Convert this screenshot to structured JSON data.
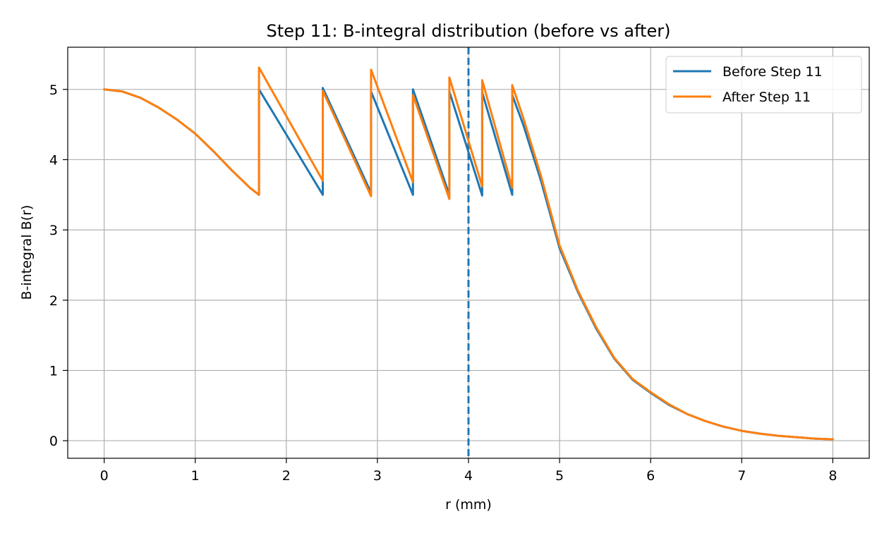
{
  "chart_data": {
    "type": "line",
    "title": "Step 11: B-integral distribution (before vs after)",
    "xlabel": "r (mm)",
    "ylabel": "B-integral B(r)",
    "xlim": [
      -0.4,
      8.4
    ],
    "ylim": [
      -0.25,
      5.6
    ],
    "xticks": [
      0,
      1,
      2,
      3,
      4,
      5,
      6,
      7,
      8
    ],
    "yticks": [
      0,
      1,
      2,
      3,
      4,
      5
    ],
    "grid": true,
    "legend_position": "top-right",
    "vline": {
      "x": 4.0,
      "style": "dashed",
      "color": "#1f77b4"
    },
    "colors": {
      "before": "#1f77b4",
      "after": "#ff7f0e",
      "grid": "#b0b0b0"
    },
    "series": [
      {
        "name": "Before Step 11",
        "color": "#1f77b4",
        "x": [
          0,
          0.2,
          0.4,
          0.6,
          0.8,
          1.0,
          1.2,
          1.4,
          1.6,
          1.7,
          1.7,
          2.4,
          2.4,
          2.93,
          2.93,
          3.39,
          3.39,
          3.79,
          3.79,
          4.15,
          4.15,
          4.48,
          4.48,
          4.6,
          4.8,
          5.0,
          5.2,
          5.4,
          5.6,
          5.8,
          6.0,
          6.2,
          6.4,
          6.6,
          6.8,
          7.0,
          7.2,
          7.4,
          7.6,
          7.8,
          8.0
        ],
        "y": [
          5.0,
          4.97,
          4.88,
          4.74,
          4.57,
          4.37,
          4.12,
          3.85,
          3.6,
          3.5,
          5.0,
          3.5,
          5.02,
          3.53,
          4.97,
          3.5,
          5.0,
          3.5,
          4.97,
          3.49,
          4.96,
          3.5,
          4.92,
          4.5,
          3.68,
          2.74,
          2.12,
          1.6,
          1.17,
          0.87,
          0.68,
          0.51,
          0.38,
          0.28,
          0.2,
          0.14,
          0.1,
          0.07,
          0.05,
          0.03,
          0.02
        ]
      },
      {
        "name": "After Step 11",
        "color": "#ff7f0e",
        "x": [
          0,
          0.2,
          0.4,
          0.6,
          0.8,
          1.0,
          1.2,
          1.4,
          1.6,
          1.7,
          1.7,
          2.4,
          2.4,
          2.93,
          2.93,
          3.39,
          3.39,
          3.79,
          3.79,
          4.15,
          4.15,
          4.48,
          4.48,
          4.6,
          4.8,
          5.0,
          5.2,
          5.4,
          5.6,
          5.8,
          6.0,
          6.2,
          6.4,
          6.6,
          6.8,
          7.0,
          7.2,
          7.4,
          7.6,
          7.8,
          8.0
        ],
        "y": [
          5.0,
          4.97,
          4.88,
          4.74,
          4.57,
          4.37,
          4.12,
          3.85,
          3.6,
          3.5,
          5.31,
          3.7,
          4.98,
          3.48,
          5.28,
          3.68,
          4.92,
          3.44,
          5.17,
          3.62,
          5.13,
          3.6,
          5.06,
          4.6,
          3.75,
          2.78,
          2.14,
          1.62,
          1.18,
          0.88,
          0.69,
          0.52,
          0.38,
          0.28,
          0.2,
          0.14,
          0.1,
          0.07,
          0.05,
          0.03,
          0.02
        ]
      }
    ]
  }
}
